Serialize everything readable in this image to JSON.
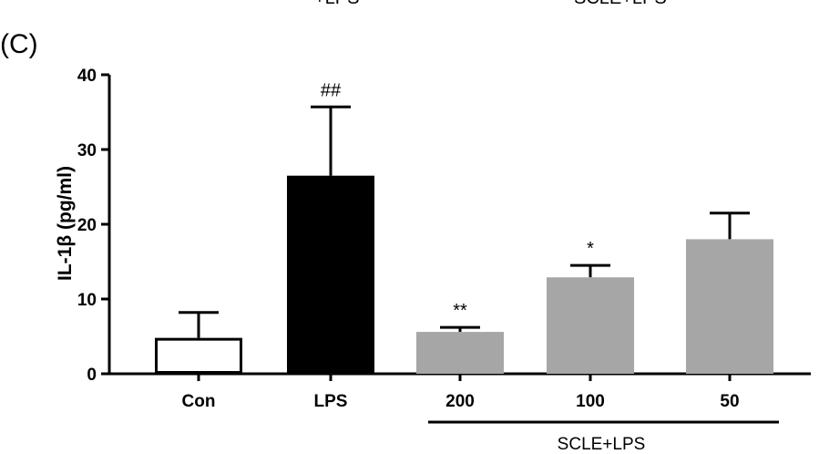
{
  "header": {
    "top_left_fragment": "+LPS",
    "top_right_fragment": "SCLE+LPS"
  },
  "panel_label": "(C)",
  "chart_data": {
    "type": "bar",
    "ylabel": "IL-1β  (pg/ml)",
    "xlabel": "",
    "ylim": [
      0,
      40
    ],
    "yticks": [
      0,
      10,
      20,
      30,
      40
    ],
    "categories": [
      "Con",
      "LPS",
      "200",
      "100",
      "50"
    ],
    "values": [
      4.8,
      26.5,
      5.6,
      12.9,
      18.0
    ],
    "errors": [
      3.4,
      9.2,
      0.6,
      1.6,
      3.5
    ],
    "significance": [
      "",
      "##",
      "**",
      "*",
      ""
    ],
    "bar_styles": [
      "open",
      "black",
      "gray",
      "gray",
      "gray"
    ],
    "group_label": "SCLE+LPS",
    "group_span": [
      "200",
      "50"
    ]
  },
  "colors": {
    "lps_bar": "#000000",
    "scle_bar": "#a6a6a6",
    "con_bar": "#ffffff",
    "axis": "#000000"
  }
}
